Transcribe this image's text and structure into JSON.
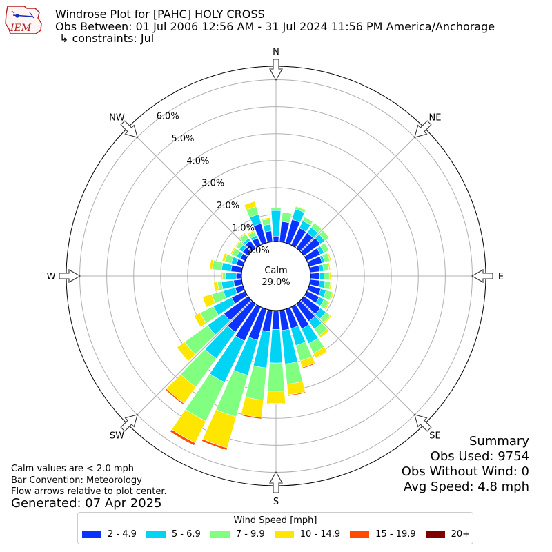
{
  "header": {
    "logo_text": "IEM",
    "title": "Windrose Plot for [PAHC] HOLY CROSS",
    "obs_between": "Obs Between: 01 Jul 2006 12:56 AM - 31 Jul 2024 11:56 PM America/Anchorage",
    "constraints": "↳ constraints: Jul"
  },
  "notes": {
    "calm_def": "Calm values are < 2.0 mph",
    "bar_convention": "Bar Convention: Meteorology",
    "flow_arrows": "Flow arrows relative to plot center.",
    "generated": "Generated: 07 Apr 2025"
  },
  "summary": {
    "title": "Summary",
    "obs_used": "Obs Used: 9754",
    "obs_without_wind": "Obs Without Wind: 0",
    "avg_speed": "Avg Speed: 4.8 mph"
  },
  "colors": {
    "bins": [
      "#0a33ff",
      "#00d4f5",
      "#80ff80",
      "#ffe600",
      "#ff4c00",
      "#7f0000"
    ],
    "grid": "#b0b0b0",
    "arrow_fill": "#ffffff",
    "arrow_stroke": "#333333"
  },
  "chart_data": {
    "type": "windrose",
    "unit": "mph",
    "calm_label": "Calm",
    "calm_value": "29.0%",
    "radial_max_percent": 6.5,
    "radial_tick_labels": [
      "0.0%",
      "1.0%",
      "2.0%",
      "3.0%",
      "4.0%",
      "5.0%",
      "6.0%"
    ],
    "compass_labels": [
      "N",
      "NE",
      "E",
      "SE",
      "S",
      "SW",
      "W",
      "NW"
    ],
    "legend_title": "Wind Speed [mph]",
    "speed_bins": [
      "2 - 4.9",
      "5 - 6.9",
      "7 - 9.9",
      "10 - 14.9",
      "15 - 19.9",
      "20+"
    ],
    "direction_step_deg": 10,
    "directions_deg": [
      0,
      10,
      20,
      30,
      40,
      50,
      60,
      70,
      80,
      90,
      100,
      110,
      120,
      130,
      140,
      150,
      160,
      170,
      180,
      190,
      200,
      210,
      220,
      230,
      240,
      250,
      260,
      270,
      280,
      290,
      300,
      310,
      320,
      330,
      340,
      350
    ],
    "frequency_percent": [
      [
        0.2,
        0.95,
        0.1,
        0.0,
        0.0,
        0.0
      ],
      [
        0.75,
        0.0,
        0.35,
        0.0,
        0.0,
        0.0
      ],
      [
        0.9,
        0.4,
        0.1,
        0.02,
        0.0,
        0.0
      ],
      [
        0.7,
        0.3,
        0.15,
        0.02,
        0.0,
        0.0
      ],
      [
        0.7,
        0.25,
        0.2,
        0.02,
        0.0,
        0.0
      ],
      [
        0.75,
        0.2,
        0.2,
        0.02,
        0.0,
        0.0
      ],
      [
        0.55,
        0.15,
        0.2,
        0.02,
        0.0,
        0.0
      ],
      [
        0.5,
        0.1,
        0.2,
        0.05,
        0.0,
        0.0
      ],
      [
        0.35,
        0.15,
        0.2,
        0.05,
        0.0,
        0.0
      ],
      [
        0.35,
        0.15,
        0.2,
        0.05,
        0.0,
        0.0
      ],
      [
        0.35,
        0.2,
        0.2,
        0.05,
        0.0,
        0.0
      ],
      [
        0.45,
        0.2,
        0.25,
        0.05,
        0.0,
        0.0
      ],
      [
        0.5,
        0.2,
        0.2,
        0.05,
        0.0,
        0.0
      ],
      [
        0.75,
        0.25,
        0.2,
        0.05,
        0.0,
        0.0
      ],
      [
        0.8,
        0.35,
        0.3,
        0.1,
        0.0,
        0.0
      ],
      [
        0.9,
        0.6,
        0.4,
        0.2,
        0.02,
        0.0
      ],
      [
        0.75,
        0.65,
        0.6,
        0.25,
        0.04,
        0.0
      ],
      [
        0.75,
        1.25,
        0.75,
        0.4,
        0.04,
        0.0
      ],
      [
        0.7,
        1.25,
        1.05,
        0.45,
        0.04,
        0.0
      ],
      [
        0.8,
        1.35,
        1.2,
        0.65,
        0.05,
        0.0
      ],
      [
        1.2,
        1.35,
        1.6,
        1.2,
        0.08,
        0.0
      ],
      [
        1.4,
        1.7,
        1.6,
        0.9,
        0.1,
        0.0
      ],
      [
        1.3,
        1.2,
        1.3,
        0.75,
        0.05,
        0.0
      ],
      [
        1.1,
        0.75,
        1.05,
        0.35,
        0.0,
        0.0
      ],
      [
        0.55,
        0.75,
        0.55,
        0.25,
        0.0,
        0.0
      ],
      [
        0.3,
        0.45,
        0.45,
        0.35,
        0.0,
        0.0
      ],
      [
        0.3,
        0.45,
        0.15,
        0.15,
        0.0,
        0.0
      ],
      [
        0.2,
        0.4,
        0.1,
        0.05,
        0.0,
        0.0
      ],
      [
        0.4,
        0.35,
        0.35,
        0.1,
        0.0,
        0.0
      ],
      [
        0.25,
        0.2,
        0.25,
        0.1,
        0.0,
        0.0
      ],
      [
        0.2,
        0.15,
        0.2,
        0.05,
        0.0,
        0.0
      ],
      [
        0.25,
        0.15,
        0.15,
        0.05,
        0.0,
        0.0
      ],
      [
        0.35,
        0.1,
        0.2,
        0.05,
        0.0,
        0.0
      ],
      [
        0.3,
        0.1,
        0.15,
        0.05,
        0.0,
        0.0
      ],
      [
        0.75,
        0.35,
        0.3,
        0.2,
        0.0,
        0.0
      ],
      [
        0.4,
        0.25,
        0.2,
        0.05,
        0.0,
        0.0
      ]
    ]
  }
}
